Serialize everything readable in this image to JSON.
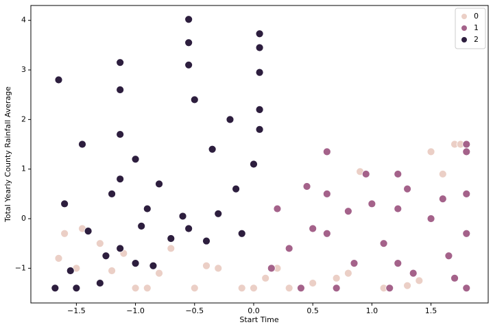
{
  "chart_data": {
    "type": "scatter",
    "xlabel": "Start Time",
    "ylabel": "Total Yearly County Rainfall Average",
    "xlim": [
      -1.885,
      1.984
    ],
    "ylim": [
      -1.7,
      4.3
    ],
    "xticks": [
      {
        "value": -1.5,
        "label": "−1.5"
      },
      {
        "value": -1.0,
        "label": "−1.0"
      },
      {
        "value": -0.5,
        "label": "−0.5"
      },
      {
        "value": 0,
        "label": "0.0"
      },
      0.5,
      {
        "value": 1.0,
        "label": "1.0"
      },
      1.5
    ],
    "yticks": [
      {
        "value": -1,
        "label": "−1"
      },
      0,
      1,
      2,
      3,
      4
    ],
    "legend": "upper right",
    "series": [
      {
        "name": "0",
        "color": "#ebcfc6",
        "x": [
          -1.65,
          -1.5,
          -1.3,
          -1.1,
          -0.9,
          -0.7,
          -0.5,
          -0.3,
          -0.1,
          0.1,
          0.3,
          0.5,
          0.8,
          1.1,
          1.4,
          1.7,
          -1.6,
          -1.2,
          -0.8,
          -0.4,
          0.2,
          0.7,
          1.3,
          1.5,
          1.75,
          -1.45,
          -1.0,
          0.0,
          0.9,
          1.6
        ],
        "values": [
          -0.8,
          -1.0,
          -0.5,
          -0.7,
          -1.4,
          -0.6,
          -1.4,
          -1.0,
          -1.4,
          -1.2,
          -1.4,
          -1.3,
          -1.1,
          -1.4,
          -1.25,
          1.5,
          -0.3,
          -1.05,
          -1.1,
          -0.95,
          -1.0,
          -1.2,
          -1.35,
          1.35,
          1.5,
          -0.2,
          -1.4,
          -1.4,
          0.95,
          0.9
        ]
      },
      {
        "name": "1",
        "color": "#a4628a",
        "x": [
          0.62,
          0.62,
          0.62,
          1.22,
          1.22,
          1.22,
          1.8,
          1.8,
          1.8,
          1.8,
          1.8,
          0.2,
          0.3,
          0.45,
          0.7,
          0.85,
          1.0,
          1.1,
          1.35,
          1.5,
          1.65,
          0.15,
          0.4,
          0.95,
          1.3,
          1.6,
          0.5,
          0.8,
          1.15,
          1.7
        ],
        "values": [
          1.35,
          0.5,
          -0.3,
          0.9,
          0.2,
          -0.9,
          1.5,
          1.35,
          0.5,
          -0.3,
          -1.4,
          0.2,
          -0.6,
          0.65,
          -1.4,
          -0.9,
          0.3,
          -0.5,
          -1.1,
          0.0,
          -0.75,
          -1.0,
          -1.4,
          0.9,
          0.6,
          0.4,
          -0.2,
          0.15,
          -1.4,
          -1.2
        ]
      },
      {
        "name": "2",
        "color": "#2d1e3e",
        "x": [
          -1.68,
          -1.5,
          -1.3,
          -1.13,
          -1.13,
          -1.13,
          -1.13,
          -0.55,
          -0.55,
          -0.55,
          0.05,
          0.05,
          0.05,
          0.05,
          -1.6,
          -1.4,
          -1.2,
          -1.0,
          -0.9,
          -0.7,
          -0.6,
          -0.4,
          -0.3,
          -0.1,
          -1.45,
          -1.25,
          -0.85,
          -0.35,
          -0.15,
          0.0,
          -1.13,
          -0.55,
          0.05,
          -1.65,
          -1.0,
          -0.8,
          -0.5,
          -0.2,
          -1.55,
          -0.95
        ],
        "values": [
          -1.4,
          -1.4,
          -1.3,
          3.15,
          2.6,
          1.7,
          0.8,
          4.02,
          3.55,
          3.1,
          3.73,
          3.45,
          2.95,
          2.2,
          0.3,
          -0.25,
          0.5,
          -0.9,
          0.2,
          -0.4,
          0.05,
          -0.45,
          0.1,
          -0.3,
          1.5,
          -0.75,
          -0.95,
          1.4,
          0.6,
          1.1,
          -0.6,
          -0.2,
          1.8,
          2.8,
          1.2,
          0.7,
          2.4,
          2.0,
          -1.05,
          -0.15
        ]
      }
    ]
  }
}
